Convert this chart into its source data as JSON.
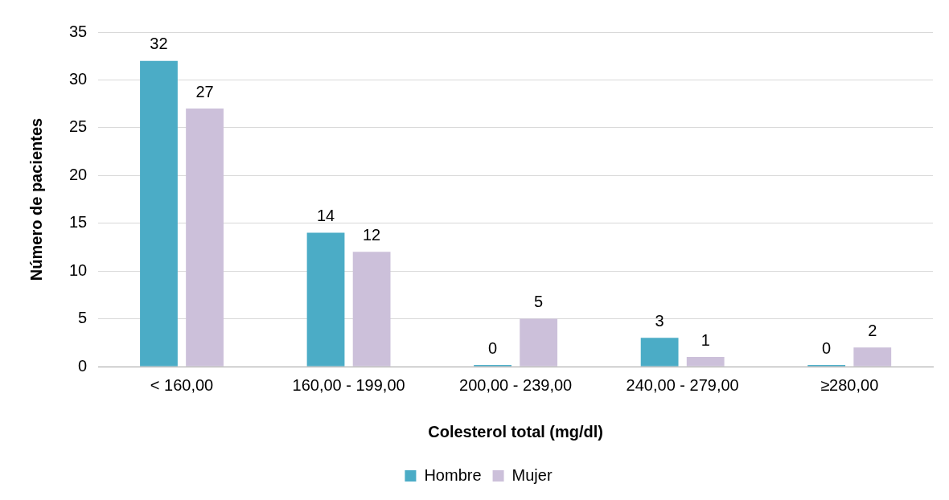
{
  "chart_data": {
    "type": "bar",
    "xlabel": "Colesterol total (mg/dl)",
    "ylabel": "Número de pacientes",
    "categories": [
      "< 160,00",
      "160,00 - 199,00",
      "200,00 - 239,00",
      "240,00 - 279,00",
      "≥280,00"
    ],
    "series": [
      {
        "name": "Hombre",
        "color": "#4bacc6",
        "values": [
          32,
          14,
          0,
          3,
          0
        ]
      },
      {
        "name": "Mujer",
        "color": "#ccc0da",
        "values": [
          27,
          12,
          5,
          1,
          2
        ]
      }
    ],
    "ylim": [
      0,
      35
    ],
    "yticks": [
      0,
      5,
      10,
      15,
      20,
      25,
      30,
      35
    ],
    "grid": "y",
    "legend": "bottom",
    "data_labels": true
  }
}
